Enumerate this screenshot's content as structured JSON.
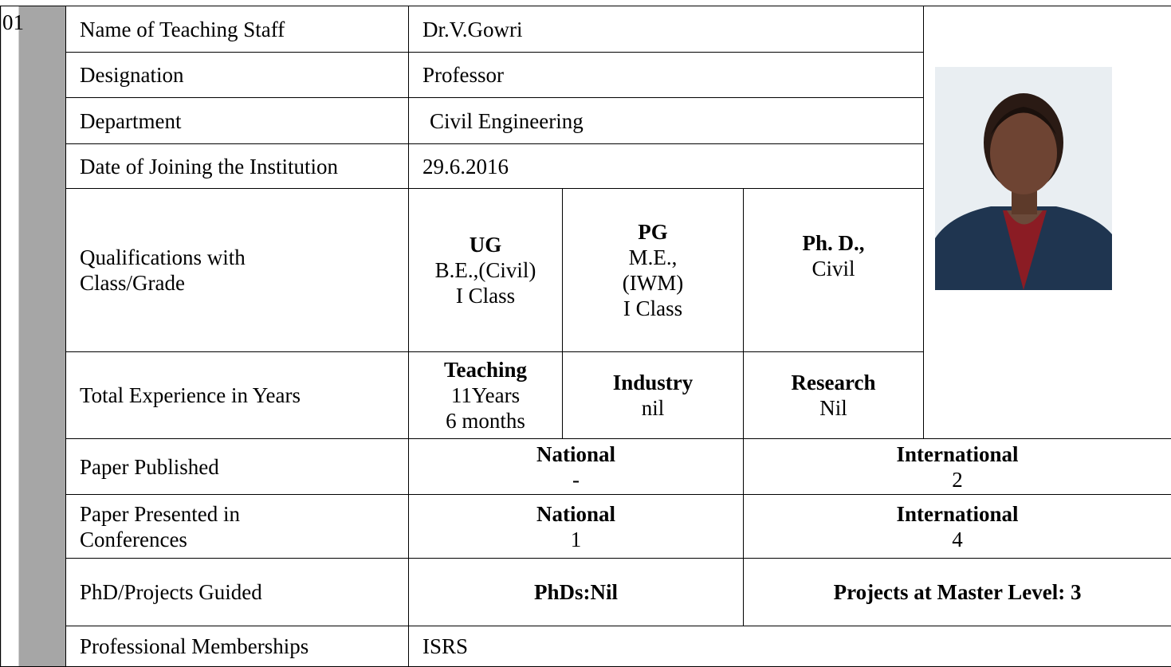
{
  "serial": "01",
  "name": {
    "label": "Name of Teaching Staff",
    "value": "Dr.V.Gowri"
  },
  "designation": {
    "label": "Designation",
    "value": "Professor"
  },
  "department": {
    "label": "Department",
    "value": "Civil Engineering"
  },
  "joining": {
    "label": "Date of Joining the Institution",
    "value": "29.6.2016"
  },
  "qualifications": {
    "label": [
      "Qualifications with",
      "Class/Grade"
    ],
    "ug": {
      "heading": "UG",
      "lines": [
        "B.E.,(Civil)",
        "I Class"
      ]
    },
    "pg": {
      "heading": "PG",
      "lines": [
        "M.E.,",
        "(IWM)",
        "I Class"
      ]
    },
    "phd": {
      "heading": "Ph. D.,",
      "lines": [
        "Civil"
      ]
    }
  },
  "experience": {
    "label": "Total Experience in Years",
    "teaching": {
      "heading": "Teaching",
      "lines": [
        "11Years",
        "6 months"
      ]
    },
    "industry": {
      "heading": "Industry",
      "lines": [
        "nil"
      ]
    },
    "research": {
      "heading": "Research",
      "lines": [
        "Nil"
      ]
    }
  },
  "published": {
    "label": [
      "Paper Published"
    ],
    "national": {
      "heading": "National",
      "value": "-"
    },
    "international": {
      "heading": "International",
      "value": "2"
    }
  },
  "presented": {
    "label": [
      "Paper Presented in",
      "Conferences"
    ],
    "national": {
      "heading": "National",
      "value": "1"
    },
    "international": {
      "heading": "International",
      "value": "4"
    }
  },
  "guided": {
    "label": "PhD/Projects Guided",
    "phds": "PhDs:Nil",
    "projects": "Projects at Master Level: 3"
  },
  "memberships": {
    "label": "Professional Memberships",
    "value": "ISRS"
  }
}
